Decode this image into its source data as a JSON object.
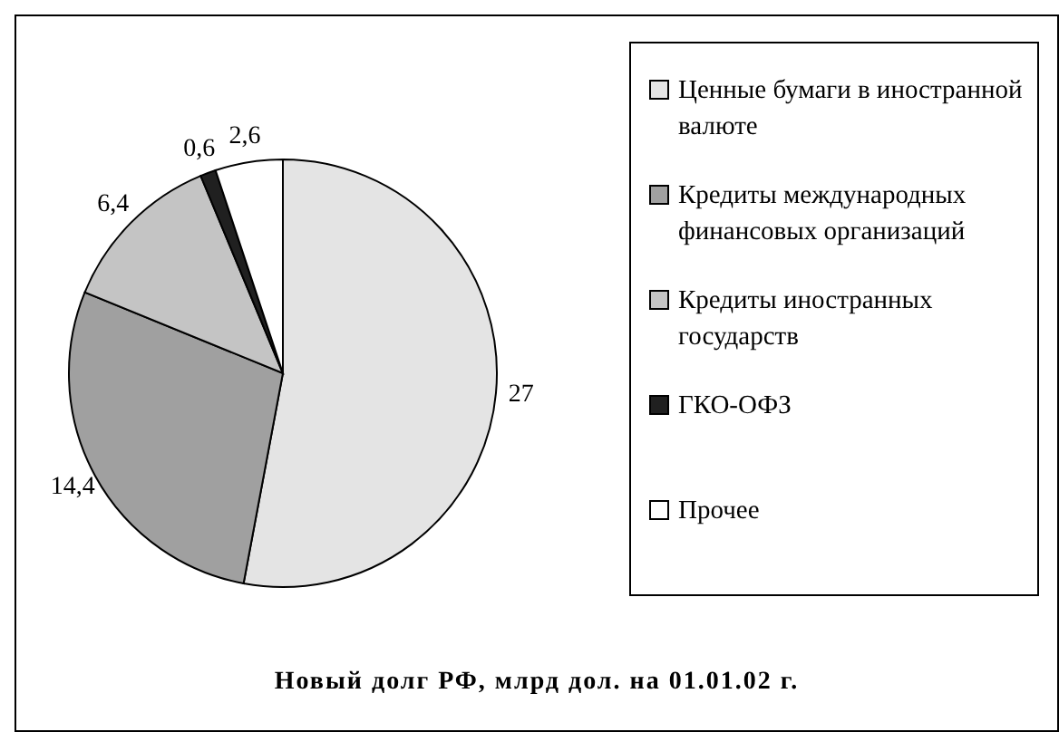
{
  "chart_data": {
    "type": "pie",
    "title": "Новый долг РФ, млрд дол. на 01.01.02 г.",
    "categories": [
      "Ценные бумаги в иностранной валюте",
      "Кредиты международных финансовых организаций",
      "Кредиты иностранных государств",
      "ГКО-ОФЗ",
      "Прочее"
    ],
    "values": [
      27,
      14.4,
      6.4,
      0.6,
      2.6
    ],
    "value_labels": [
      "27",
      "14,4",
      "6,4",
      "0,6",
      "2,6"
    ],
    "colors": [
      "#e4e4e4",
      "#a0a0a0",
      "#c4c4c4",
      "#202020",
      "#ffffff"
    ],
    "legend": "right"
  }
}
